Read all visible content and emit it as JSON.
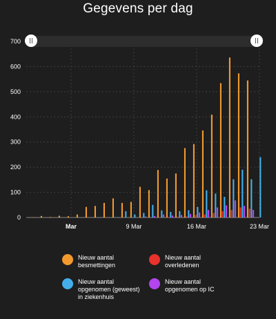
{
  "chart_data": {
    "type": "bar",
    "title": "Gegevens per dag",
    "ylim": [
      0,
      700
    ],
    "yticks": [
      0,
      100,
      200,
      300,
      400,
      500,
      600,
      700
    ],
    "xticks": [
      {
        "day": 2,
        "label": "Mar",
        "bold": true
      },
      {
        "day": 9,
        "label": "9 Mar",
        "bold": false
      },
      {
        "day": 16,
        "label": "16 Mar",
        "bold": false
      },
      {
        "day": 23,
        "label": "23 Mar",
        "bold": false
      }
    ],
    "x_dates": [
      "27 Feb",
      "28 Feb",
      "29 Feb",
      "1 Mar",
      "2 Mar",
      "3 Mar",
      "4 Mar",
      "5 Mar",
      "6 Mar",
      "7 Mar",
      "8 Mar",
      "9 Mar",
      "10 Mar",
      "11 Mar",
      "12 Mar",
      "13 Mar",
      "14 Mar",
      "15 Mar",
      "16 Mar",
      "17 Mar",
      "18 Mar",
      "19 Mar",
      "20 Mar",
      "21 Mar",
      "22 Mar",
      "23 Mar"
    ],
    "x_days": [
      -2,
      -1,
      0,
      1,
      2,
      3,
      4,
      5,
      6,
      7,
      8,
      9,
      10,
      11,
      12,
      13,
      14,
      15,
      16,
      17,
      18,
      19,
      20,
      21,
      22,
      23
    ],
    "grid": true,
    "legend_position": "bottom",
    "series": [
      {
        "name": "Nieuw aantal besmettingen",
        "color": "#f29a2e",
        "values": [
          1,
          6,
          2,
          7,
          5,
          12,
          42,
          46,
          58,
          76,
          58,
          62,
          122,
          109,
          189,
          155,
          175,
          276,
          292,
          346,
          409,
          534,
          636,
          573,
          545,
          0
        ]
      },
      {
        "name": "Nieuw aantal overleden",
        "color": "#e8322b",
        "values": [
          0,
          0,
          0,
          0,
          0,
          0,
          0,
          0,
          0,
          0,
          0,
          0,
          0,
          0,
          1,
          2,
          3,
          4,
          10,
          12,
          18,
          25,
          30,
          40,
          35,
          0
        ]
      },
      {
        "name": "Nieuw aantal opgenomen (geweest) in ziekenhuis",
        "color": "#43aeea",
        "values": [
          0,
          0,
          0,
          0,
          0,
          0,
          0,
          0,
          0,
          0,
          25,
          12,
          18,
          50,
          28,
          22,
          25,
          29,
          42,
          108,
          95,
          82,
          152,
          190,
          152,
          240
        ]
      },
      {
        "name": "Nieuw aantal opgenomen op IC",
        "color": "#b245ef",
        "values": [
          0,
          0,
          0,
          0,
          0,
          0,
          0,
          0,
          0,
          0,
          0,
          0,
          4,
          6,
          12,
          8,
          10,
          14,
          20,
          30,
          40,
          48,
          68,
          46,
          30,
          0
        ]
      }
    ]
  },
  "legend": [
    {
      "label": "Nieuw aantal\nbesmettingen",
      "color": "#f29a2e"
    },
    {
      "label": "Nieuw aantal\noverledenen",
      "color": "#e8322b"
    },
    {
      "label": "Nieuw aantal\nopgenomen (geweest)\nin ziekenhuis",
      "color": "#43aeea"
    },
    {
      "label": "Nieuw aantal\nopgenomen op IC",
      "color": "#b245ef"
    }
  ]
}
